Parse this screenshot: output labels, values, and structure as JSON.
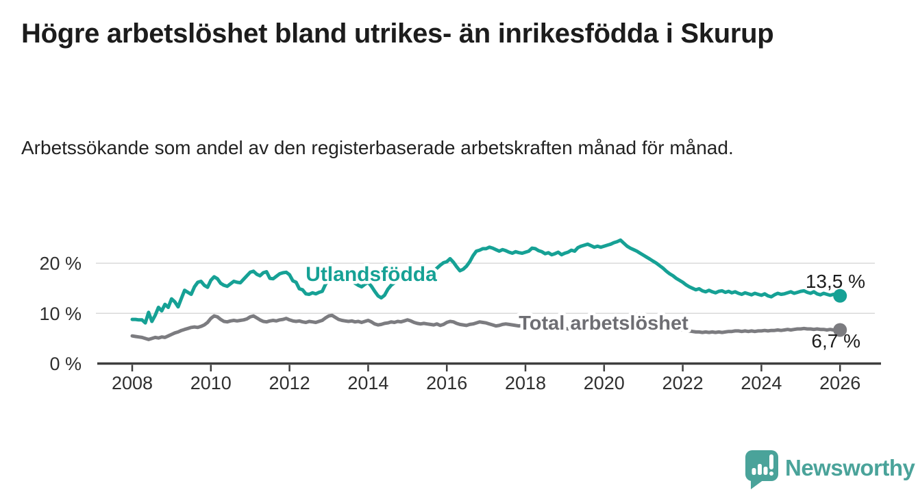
{
  "page": {
    "background": "#ffffff"
  },
  "header": {
    "title": "Högre arbetslöshet bland utrikes- än inrikesfödda i Skurup",
    "subtitle": "Arbetssökande som andel av den registerbaserade arbetskraften månad för månad."
  },
  "chart_data": {
    "type": "line",
    "unit": "%",
    "frequency": "monthly",
    "start": "2008-01",
    "end": "2026-01",
    "title": "Högre arbetslöshet bland utrikes- än inrikesfödda i Skurup",
    "xlabel": "",
    "ylabel": "",
    "x_ticks": [
      "2008",
      "2010",
      "2012",
      "2014",
      "2016",
      "2018",
      "2020",
      "2022",
      "2024",
      "2026"
    ],
    "y_ticks": [
      {
        "value": 0,
        "label": "0 %"
      },
      {
        "value": 10,
        "label": "10 %"
      },
      {
        "value": 20,
        "label": "20 %"
      }
    ],
    "ylim": [
      0,
      26
    ],
    "grid": "horizontal-light",
    "grid_color": "#d9d9d9",
    "axis_color": "#3d3d3d",
    "tick_label_color": "#2f2f2f",
    "value_label_color": "#1c1c1c",
    "legend_position": "inline-labels",
    "series": [
      {
        "name": "Utlandsfödda",
        "color": "#16a195",
        "end_label": "13,5 %",
        "end_value": 13.5,
        "values": [
          8.8,
          8.8,
          8.7,
          8.7,
          8.1,
          10.2,
          8.4,
          9.6,
          11.2,
          10.5,
          11.8,
          11.2,
          12.9,
          12.3,
          11.3,
          13.0,
          14.6,
          14.2,
          13.8,
          15.3,
          16.2,
          16.4,
          15.6,
          15.2,
          16.6,
          17.3,
          16.9,
          16.0,
          15.6,
          15.4,
          15.9,
          16.4,
          16.2,
          16.1,
          16.8,
          17.5,
          18.2,
          18.4,
          17.8,
          17.5,
          18.1,
          18.3,
          17.0,
          16.9,
          17.4,
          17.9,
          18.1,
          18.2,
          17.7,
          16.5,
          16.2,
          14.9,
          14.7,
          13.9,
          13.8,
          14.1,
          13.9,
          14.2,
          14.4,
          15.8,
          16.8,
          17.2,
          16.5,
          16.2,
          16.8,
          17.4,
          17.2,
          16.5,
          16.0,
          15.6,
          15.3,
          15.8,
          16.2,
          15.4,
          14.4,
          13.5,
          13.1,
          13.6,
          14.8,
          15.6,
          16.1,
          16.6,
          17.3,
          18.4,
          17.6,
          17.0,
          16.6,
          16.9,
          17.2,
          17.6,
          17.9,
          18.2,
          18.5,
          19.0,
          19.6,
          20.1,
          20.3,
          20.9,
          20.2,
          19.3,
          18.5,
          18.8,
          19.4,
          20.3,
          21.5,
          22.4,
          22.6,
          22.9,
          22.9,
          23.2,
          23.0,
          22.7,
          22.4,
          22.7,
          22.5,
          22.2,
          22.0,
          22.3,
          22.1,
          22.0,
          22.2,
          22.4,
          23.0,
          22.9,
          22.5,
          22.3,
          21.9,
          22.1,
          21.7,
          21.9,
          22.2,
          21.7,
          22.0,
          22.2,
          22.6,
          22.4,
          23.1,
          23.4,
          23.6,
          23.8,
          23.5,
          23.2,
          23.4,
          23.2,
          23.4,
          23.6,
          23.8,
          24.1,
          24.3,
          24.6,
          24.0,
          23.4,
          23.0,
          22.7,
          22.4,
          22.0,
          21.6,
          21.2,
          20.8,
          20.4,
          20.0,
          19.5,
          19.0,
          18.4,
          17.9,
          17.5,
          17.0,
          16.6,
          16.2,
          15.7,
          15.3,
          15.0,
          14.7,
          14.9,
          14.5,
          14.3,
          14.6,
          14.3,
          14.1,
          14.4,
          14.5,
          14.2,
          14.4,
          14.1,
          14.3,
          14.0,
          13.8,
          14.1,
          13.9,
          13.7,
          14.0,
          13.8,
          13.6,
          13.9,
          13.5,
          13.3,
          13.7,
          14.0,
          13.8,
          13.9,
          14.1,
          14.3,
          14.0,
          14.2,
          14.4,
          14.5,
          14.2,
          14.0,
          14.3,
          13.9,
          13.7,
          14.0,
          13.8,
          13.6,
          13.8,
          13.6,
          13.5
        ]
      },
      {
        "name": "Total arbetslöshet",
        "color": "#7c7c80",
        "label_color": "#6e6e73",
        "end_label": "6,7 %",
        "end_value": 6.7,
        "values": [
          5.5,
          5.4,
          5.3,
          5.2,
          5.0,
          4.8,
          5.0,
          5.2,
          5.1,
          5.3,
          5.2,
          5.5,
          5.8,
          6.1,
          6.3,
          6.6,
          6.8,
          7.0,
          7.2,
          7.3,
          7.2,
          7.4,
          7.7,
          8.2,
          9.0,
          9.5,
          9.3,
          8.8,
          8.4,
          8.3,
          8.5,
          8.6,
          8.5,
          8.6,
          8.7,
          8.9,
          9.3,
          9.5,
          9.1,
          8.7,
          8.4,
          8.3,
          8.5,
          8.6,
          8.5,
          8.7,
          8.8,
          9.0,
          8.7,
          8.5,
          8.4,
          8.5,
          8.3,
          8.2,
          8.4,
          8.3,
          8.2,
          8.4,
          8.6,
          9.1,
          9.5,
          9.6,
          9.2,
          8.8,
          8.6,
          8.5,
          8.4,
          8.5,
          8.3,
          8.4,
          8.2,
          8.4,
          8.6,
          8.3,
          7.9,
          7.7,
          7.8,
          8.0,
          8.1,
          8.3,
          8.2,
          8.4,
          8.3,
          8.5,
          8.7,
          8.5,
          8.2,
          8.0,
          7.9,
          8.0,
          7.9,
          7.8,
          7.7,
          7.9,
          7.6,
          7.8,
          8.2,
          8.4,
          8.3,
          8.0,
          7.8,
          7.7,
          7.6,
          7.8,
          7.9,
          8.1,
          8.3,
          8.2,
          8.1,
          7.9,
          7.7,
          7.5,
          7.6,
          7.8,
          7.9,
          7.8,
          7.7,
          7.6,
          7.5,
          7.6,
          7.5,
          7.4,
          7.3,
          7.2,
          7.3,
          7.2,
          7.1,
          7.2,
          7.1,
          7.0,
          7.1,
          7.0,
          7.0,
          6.9,
          7.0,
          6.9,
          6.8,
          6.9,
          7.0,
          6.9,
          6.8,
          6.9,
          7.0,
          7.1,
          7.2,
          7.4,
          7.9,
          8.5,
          8.8,
          8.9,
          8.8,
          8.7,
          8.6,
          8.5,
          8.4,
          8.3,
          8.2,
          8.0,
          7.9,
          7.7,
          7.6,
          7.4,
          7.3,
          7.2,
          7.1,
          7.0,
          6.9,
          6.8,
          6.7,
          6.6,
          6.5,
          6.4,
          6.3,
          6.3,
          6.2,
          6.3,
          6.2,
          6.3,
          6.2,
          6.3,
          6.2,
          6.3,
          6.4,
          6.4,
          6.5,
          6.5,
          6.4,
          6.5,
          6.4,
          6.5,
          6.4,
          6.5,
          6.5,
          6.6,
          6.5,
          6.6,
          6.6,
          6.7,
          6.6,
          6.7,
          6.8,
          6.7,
          6.8,
          6.9,
          6.9,
          7.0,
          6.9,
          6.9,
          6.8,
          6.9,
          6.8,
          6.8,
          6.7,
          6.8,
          6.7,
          6.7,
          6.7
        ]
      }
    ]
  },
  "footer": {
    "brand": "Newsworthy",
    "brand_color": "#4aa39a",
    "logo_icon": "bar-chart-speech-bubble-icon"
  }
}
